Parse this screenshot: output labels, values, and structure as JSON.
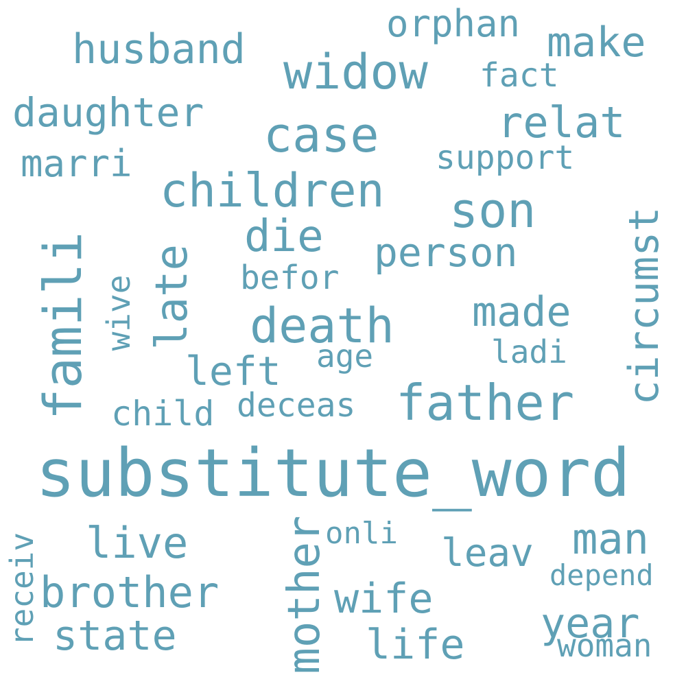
{
  "color": "#5fa0b5",
  "words": [
    {
      "text": "substitute_word"
    },
    {
      "text": "father"
    },
    {
      "text": "famili"
    },
    {
      "text": "children"
    },
    {
      "text": "widow"
    },
    {
      "text": "case"
    },
    {
      "text": "son"
    },
    {
      "text": "death"
    },
    {
      "text": "daughter"
    },
    {
      "text": "husband"
    },
    {
      "text": "relat"
    },
    {
      "text": "brother"
    },
    {
      "text": "late"
    },
    {
      "text": "die"
    },
    {
      "text": "made"
    },
    {
      "text": "man"
    },
    {
      "text": "mother"
    },
    {
      "text": "circumst"
    },
    {
      "text": "live"
    },
    {
      "text": "person"
    },
    {
      "text": "make"
    },
    {
      "text": "wife"
    },
    {
      "text": "year"
    },
    {
      "text": "state"
    },
    {
      "text": "life"
    },
    {
      "text": "left"
    },
    {
      "text": "orphan"
    },
    {
      "text": "marri"
    },
    {
      "text": "leav"
    },
    {
      "text": "support"
    },
    {
      "text": "fact"
    },
    {
      "text": "befor"
    },
    {
      "text": "deceas"
    },
    {
      "text": "child"
    },
    {
      "text": "ladi"
    },
    {
      "text": "age"
    },
    {
      "text": "onli"
    },
    {
      "text": "wive"
    },
    {
      "text": "depend"
    },
    {
      "text": "receiv"
    },
    {
      "text": "woman"
    }
  ]
}
